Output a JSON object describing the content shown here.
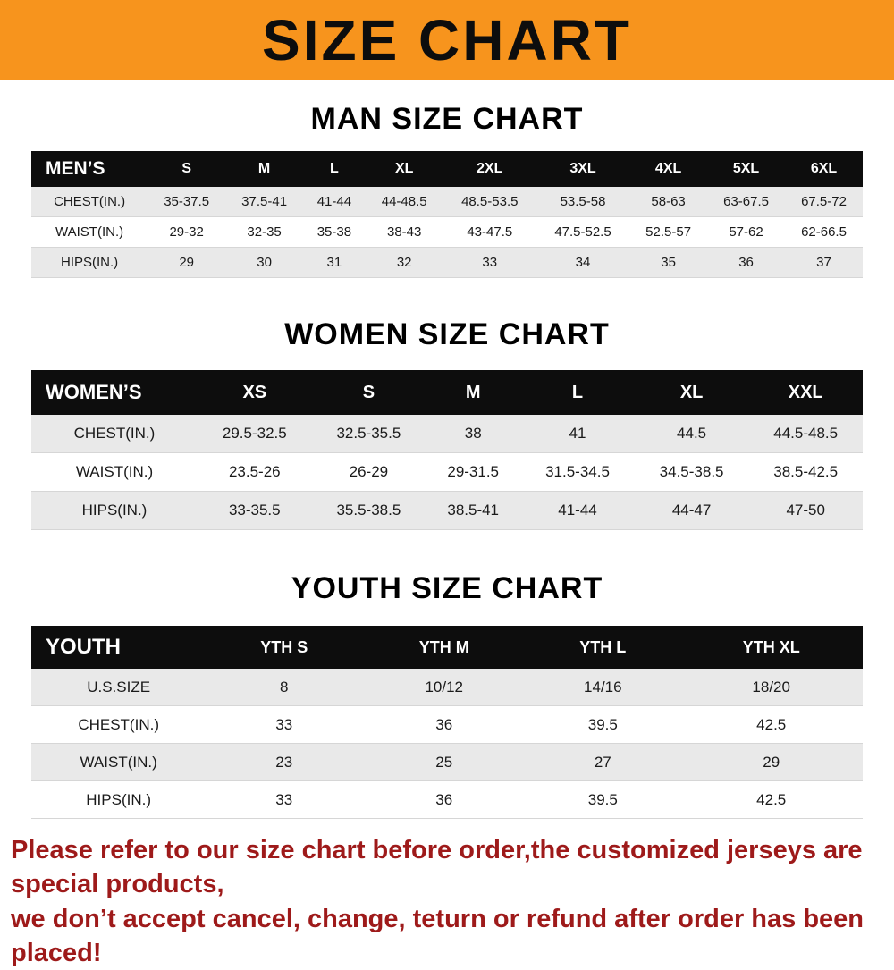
{
  "banner": {
    "title": "SIZE CHART"
  },
  "chart_data": [
    {
      "type": "table",
      "title": "MAN SIZE CHART",
      "columns": [
        "MEN’S",
        "S",
        "M",
        "L",
        "XL",
        "2XL",
        "3XL",
        "4XL",
        "5XL",
        "6XL"
      ],
      "rows": [
        [
          "CHEST(IN.)",
          "35-37.5",
          "37.5-41",
          "41-44",
          "44-48.5",
          "48.5-53.5",
          "53.5-58",
          "58-63",
          "63-67.5",
          "67.5-72"
        ],
        [
          "WAIST(IN.)",
          "29-32",
          "32-35",
          "35-38",
          "38-43",
          "43-47.5",
          "47.5-52.5",
          "52.5-57",
          "57-62",
          "62-66.5"
        ],
        [
          "HIPS(IN.)",
          "29",
          "30",
          "31",
          "32",
          "33",
          "34",
          "35",
          "36",
          "37"
        ]
      ]
    },
    {
      "type": "table",
      "title": "WOMEN SIZE CHART",
      "columns": [
        "WOMEN’S",
        "XS",
        "S",
        "M",
        "L",
        "XL",
        "XXL"
      ],
      "rows": [
        [
          "CHEST(IN.)",
          "29.5-32.5",
          "32.5-35.5",
          "38",
          "41",
          "44.5",
          "44.5-48.5"
        ],
        [
          "WAIST(IN.)",
          "23.5-26",
          "26-29",
          "29-31.5",
          "31.5-34.5",
          "34.5-38.5",
          "38.5-42.5"
        ],
        [
          "HIPS(IN.)",
          "33-35.5",
          "35.5-38.5",
          "38.5-41",
          "41-44",
          "44-47",
          "47-50"
        ]
      ]
    },
    {
      "type": "table",
      "title": "YOUTH SIZE CHART",
      "columns": [
        "YOUTH",
        "YTH S",
        "YTH M",
        "YTH L",
        "YTH XL"
      ],
      "rows": [
        [
          "U.S.SIZE",
          "8",
          "10/12",
          "14/16",
          "18/20"
        ],
        [
          "CHEST(IN.)",
          "33",
          "36",
          "39.5",
          "42.5"
        ],
        [
          "WAIST(IN.)",
          "23",
          "25",
          "27",
          "29"
        ],
        [
          "HIPS(IN.)",
          "33",
          "36",
          "39.5",
          "42.5"
        ]
      ]
    }
  ],
  "footer": {
    "line1": "Please refer to our size chart before order,the customized jerseys are special products,",
    "line2": "we don’t accept cancel, change, teturn or refund after order has been placed!"
  },
  "colors": {
    "banner_bg": "#F7941D",
    "header_bg": "#0d0d0d",
    "row_alt_bg": "#e9e9e9",
    "footer_text": "#9e1a1a"
  }
}
